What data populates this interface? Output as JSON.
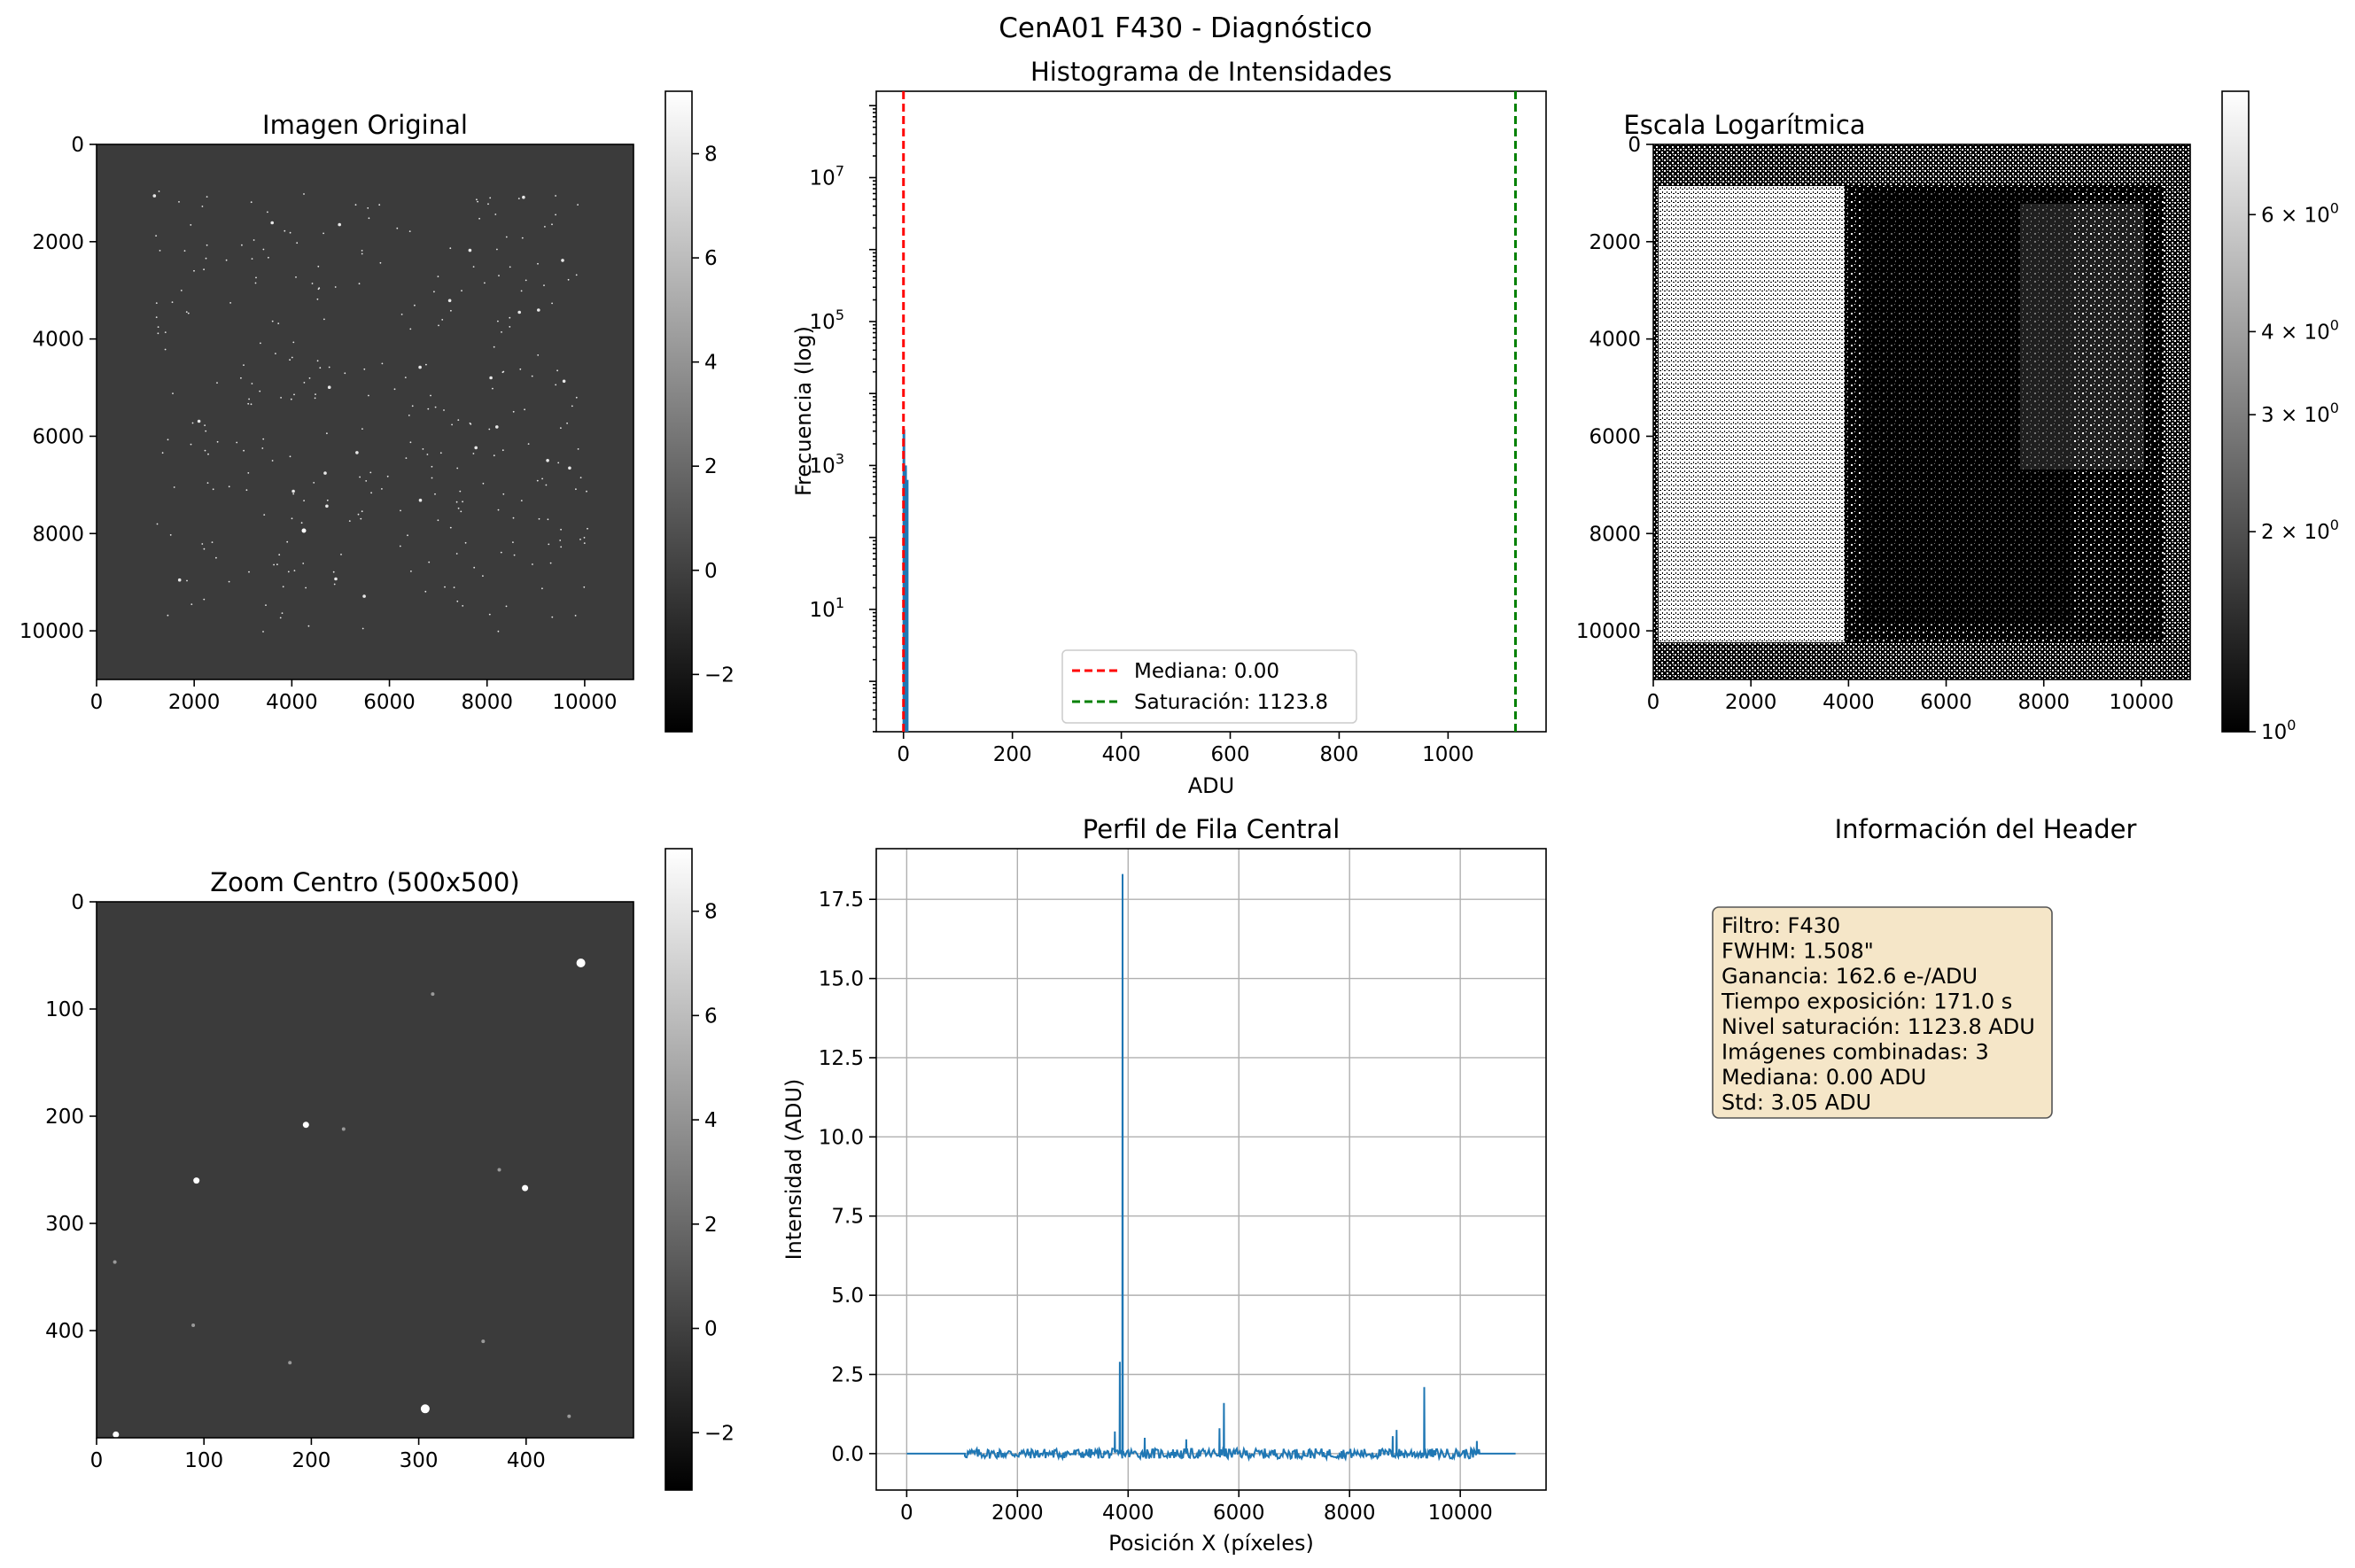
{
  "figure": {
    "suptitle": "CenA01 F430 - Diagnóstico"
  },
  "colors": {
    "series": "#1f77b4",
    "median_line": "#ff0000",
    "saturation_line": "#008000",
    "info_box_fill": "#f5e6c8",
    "image_background": "#3b3b3b"
  },
  "chart_data": [
    {
      "id": "original",
      "type": "heatmap",
      "title": "Imagen Original",
      "xlabel": "",
      "ylabel": "",
      "xlim": [
        0,
        11000
      ],
      "ylim": [
        11000,
        0
      ],
      "x_ticks": [
        "0",
        "2000",
        "4000",
        "6000",
        "8000",
        "10000"
      ],
      "y_ticks": [
        "0",
        "2000",
        "4000",
        "6000",
        "8000",
        "10000"
      ],
      "colormap": "gray",
      "colorbar": {
        "range": [
          -3.1,
          9.2
        ],
        "ticks": [
          "−2",
          "0",
          "2",
          "4",
          "6",
          "8"
        ]
      }
    },
    {
      "id": "histogram",
      "type": "bar",
      "title": "Histograma de Intensidades",
      "xlabel": "ADU",
      "ylabel": "Frecuencia (log)",
      "xlim": [
        -50,
        1180
      ],
      "ylim_log10": [
        -0.7,
        8.2
      ],
      "x_ticks": [
        "0",
        "200",
        "400",
        "600",
        "800",
        "1000"
      ],
      "y_ticks": [
        {
          "base": "10",
          "exp": "1"
        },
        {
          "base": "10",
          "exp": "3"
        },
        {
          "base": "10",
          "exp": "5"
        },
        {
          "base": "10",
          "exp": "7"
        }
      ],
      "bins": [
        {
          "x": 0,
          "log10_count": 3.5
        },
        {
          "x": 3,
          "log10_count": 3.0
        },
        {
          "x": 6,
          "log10_count": 2.8
        }
      ],
      "vlines": [
        {
          "x": 0.0,
          "label": "Mediana: 0.00",
          "style": "dashed",
          "color": "#ff0000"
        },
        {
          "x": 1123.8,
          "label": "Saturación: 1123.8",
          "style": "dashed",
          "color": "#008000"
        }
      ],
      "legend_position": "lower-center"
    },
    {
      "id": "log_scale",
      "type": "heatmap",
      "title": "Escala Logarítmica",
      "xlabel": "",
      "ylabel": "",
      "xlim": [
        0,
        11000
      ],
      "ylim": [
        11000,
        0
      ],
      "x_ticks": [
        "0",
        "2000",
        "4000",
        "6000",
        "8000",
        "10000"
      ],
      "y_ticks": [
        "0",
        "2000",
        "4000",
        "6000",
        "8000",
        "10000"
      ],
      "colormap": "gray",
      "colorbar": {
        "scale": "log",
        "range": [
          1.0,
          9.2
        ],
        "ticks": [
          {
            "value": 1,
            "label": "10",
            "exp": "0"
          },
          {
            "value": 2,
            "label": "2 × 10",
            "exp": "0"
          },
          {
            "value": 3,
            "label": "3 × 10",
            "exp": "0"
          },
          {
            "value": 4,
            "label": "4 × 10",
            "exp": "0"
          },
          {
            "value": 6,
            "label": "6 × 10",
            "exp": "0"
          }
        ]
      }
    },
    {
      "id": "zoom",
      "type": "heatmap",
      "title": "Zoom Centro (500x500)",
      "xlabel": "",
      "ylabel": "",
      "xlim": [
        0,
        500
      ],
      "ylim": [
        500,
        0
      ],
      "x_ticks": [
        "0",
        "100",
        "200",
        "300",
        "400"
      ],
      "y_ticks": [
        "0",
        "100",
        "200",
        "300",
        "400"
      ],
      "colormap": "gray",
      "colorbar": {
        "range": [
          -3.1,
          9.2
        ],
        "ticks": [
          "−2",
          "0",
          "2",
          "4",
          "6",
          "8"
        ]
      },
      "stars": [
        {
          "x": 451,
          "y": 57,
          "size": 3
        },
        {
          "x": 195,
          "y": 208,
          "size": 2
        },
        {
          "x": 93,
          "y": 260,
          "size": 2
        },
        {
          "x": 399,
          "y": 267,
          "size": 2
        },
        {
          "x": 306,
          "y": 473,
          "size": 3
        },
        {
          "x": 18,
          "y": 497,
          "size": 2
        },
        {
          "x": 17,
          "y": 336,
          "size": 1
        },
        {
          "x": 230,
          "y": 212,
          "size": 1
        },
        {
          "x": 313,
          "y": 86,
          "size": 1
        },
        {
          "x": 440,
          "y": 480,
          "size": 1
        },
        {
          "x": 90,
          "y": 395,
          "size": 1
        },
        {
          "x": 360,
          "y": 410,
          "size": 1
        },
        {
          "x": 180,
          "y": 430,
          "size": 1
        },
        {
          "x": 375,
          "y": 250,
          "size": 1
        }
      ]
    },
    {
      "id": "row_profile",
      "type": "line",
      "title": "Perfil de Fila Central",
      "xlabel": "Posición X (píxeles)",
      "ylabel": "Intensidad (ADU)",
      "xlim": [
        -550,
        11550
      ],
      "ylim": [
        -1.15,
        19.1
      ],
      "grid": true,
      "x_ticks": [
        "0",
        "2000",
        "4000",
        "6000",
        "8000",
        "10000"
      ],
      "y_ticks": [
        "0.0",
        "2.5",
        "5.0",
        "7.5",
        "10.0",
        "12.5",
        "15.0",
        "17.5"
      ],
      "spikes": [
        {
          "x": 3760,
          "y": 0.7
        },
        {
          "x": 3850,
          "y": 2.9
        },
        {
          "x": 3900,
          "y": 18.3
        },
        {
          "x": 4300,
          "y": 0.5
        },
        {
          "x": 5050,
          "y": 0.45
        },
        {
          "x": 5650,
          "y": 0.8
        },
        {
          "x": 5730,
          "y": 1.6
        },
        {
          "x": 8780,
          "y": 0.55
        },
        {
          "x": 8850,
          "y": 0.75
        },
        {
          "x": 9350,
          "y": 2.1
        },
        {
          "x": 10300,
          "y": 0.4
        }
      ],
      "noise_range": [
        1050,
        10350
      ],
      "flat_ends": [
        [
          0,
          1050
        ],
        [
          10350,
          11000
        ]
      ]
    }
  ],
  "info_panel": {
    "title": "Información del Header",
    "lines": [
      "Filtro: F430",
      "FWHM: 1.508\"",
      "Ganancia: 162.6 e-/ADU",
      "Tiempo exposición: 171.0 s",
      "Nivel saturación: 1123.8 ADU",
      "Imágenes combinadas: 3",
      "Mediana: 0.00 ADU",
      "Std: 3.05 ADU"
    ]
  }
}
